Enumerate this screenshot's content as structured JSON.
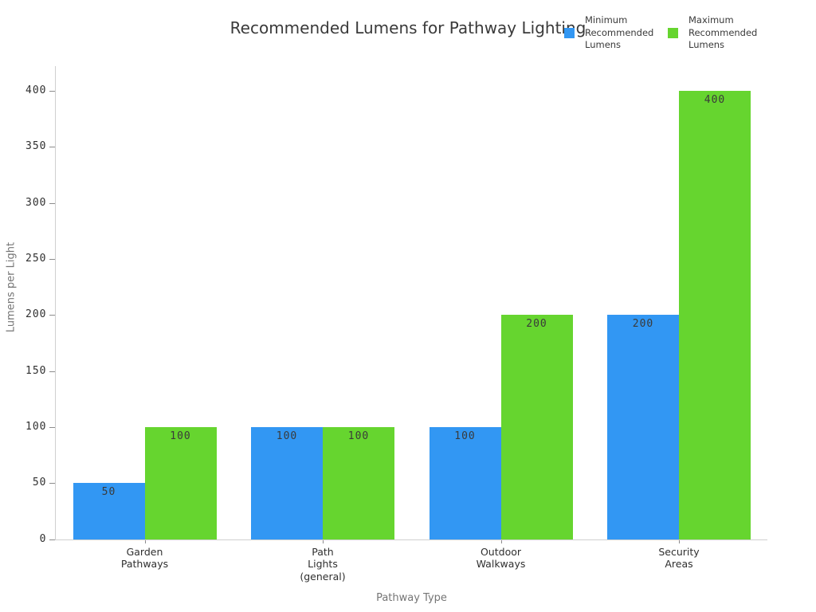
{
  "title": "Recommended Lumens for Pathway Lighting",
  "legend": [
    {
      "name": "legend-item-minimum",
      "label": "Minimum\nRecommended\nLumens",
      "color": "#3297F3"
    },
    {
      "name": "legend-item-maximum",
      "label": "Maximum\nRecommended\nLumens",
      "color": "#66D52F"
    }
  ],
  "chart_data": {
    "type": "bar",
    "title": "Recommended Lumens for Pathway Lighting",
    "xlabel": "Pathway Type",
    "ylabel": "Lumens per Light",
    "categories": [
      "Garden\nPathways",
      "Path\nLights\n(general)",
      "Outdoor\nWalkways",
      "Security\nAreas"
    ],
    "series": [
      {
        "key": "min",
        "name": "Minimum Recommended Lumens",
        "color": "#3297F3",
        "values": [
          50,
          100,
          100,
          200
        ]
      },
      {
        "key": "max",
        "name": "Maximum Recommended Lumens",
        "color": "#66D52F",
        "values": [
          100,
          100,
          200,
          400
        ]
      }
    ],
    "bar_value_labels": true,
    "ylim": [
      0,
      400
    ],
    "yticks": [
      0,
      50,
      100,
      150,
      200,
      250,
      300,
      350,
      400
    ],
    "grid": false,
    "legend_position": "top-right",
    "colors": {
      "spine": "#cfcfcf",
      "tick": "#8c8c8c",
      "tick_label": "#2f2f2f",
      "axis_title": "#757575",
      "title": "#3a3a3a"
    }
  }
}
